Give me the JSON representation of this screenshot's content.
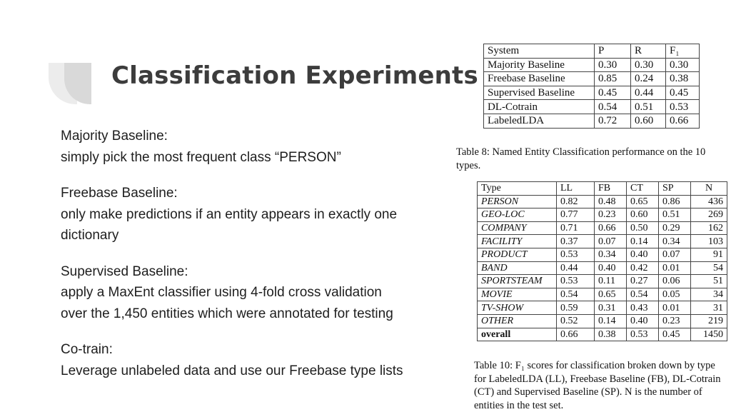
{
  "title": "Classification Experiments",
  "bullets": [
    {
      "lines": [
        "Majority Baseline:",
        "simply pick the most frequent class “PERSON”"
      ]
    },
    {
      "lines": [
        "Freebase Baseline:",
        "only make predictions if an entity appears in exactly one",
        "dictionary"
      ]
    },
    {
      "lines": [
        "Supervised Baseline:",
        "apply a MaxEnt classifier using 4-fold cross validation",
        "over the 1,450 entities which were annotated for testing"
      ]
    },
    {
      "lines": [
        "Co-train:",
        "Leverage unlabeled data and use our Freebase type lists"
      ]
    }
  ],
  "table8": {
    "rows": [
      [
        "System",
        "P",
        "R",
        "F₁"
      ],
      [
        "Majority Baseline",
        "0.30",
        "0.30",
        "0.30"
      ],
      [
        "Freebase Baseline",
        "0.85",
        "0.24",
        "0.38"
      ],
      [
        "Supervised Baseline",
        "0.45",
        "0.44",
        "0.45"
      ],
      [
        "DL-Cotrain",
        "0.54",
        "0.51",
        "0.53"
      ],
      [
        "LabeledLDA",
        "0.72",
        "0.60",
        "0.66"
      ]
    ],
    "caption": "Table 8: Named Entity Classification performance on the 10 types."
  },
  "table10": {
    "rows": [
      [
        "Type",
        "LL",
        "FB",
        "CT",
        "SP",
        "N"
      ],
      [
        "PERSON",
        "0.82",
        "0.48",
        "0.65",
        "0.86",
        "436"
      ],
      [
        "GEO-LOC",
        "0.77",
        "0.23",
        "0.60",
        "0.51",
        "269"
      ],
      [
        "COMPANY",
        "0.71",
        "0.66",
        "0.50",
        "0.29",
        "162"
      ],
      [
        "FACILITY",
        "0.37",
        "0.07",
        "0.14",
        "0.34",
        "103"
      ],
      [
        "PRODUCT",
        "0.53",
        "0.34",
        "0.40",
        "0.07",
        "91"
      ],
      [
        "BAND",
        "0.44",
        "0.40",
        "0.42",
        "0.01",
        "54"
      ],
      [
        "SPORTSTEAM",
        "0.53",
        "0.11",
        "0.27",
        "0.06",
        "51"
      ],
      [
        "MOVIE",
        "0.54",
        "0.65",
        "0.54",
        "0.05",
        "34"
      ],
      [
        "TV-SHOW",
        "0.59",
        "0.31",
        "0.43",
        "0.01",
        "31"
      ],
      [
        "OTHER",
        "0.52",
        "0.14",
        "0.40",
        "0.23",
        "219"
      ],
      [
        "overall",
        "0.66",
        "0.38",
        "0.53",
        "0.45",
        "1450"
      ]
    ],
    "caption": "Table 10: F₁ scores for classification broken down by type for LabeledLDA (LL), Freebase Baseline (FB), DL-Cotrain (CT) and Supervised Baseline (SP). N is the number of entities in the test set."
  },
  "colors": {
    "title": "#3c3c3c",
    "deco_dark": "#d9d9d9",
    "deco_light": "#ececec"
  },
  "icons": {
    "decoration": "quarter-circle-shapes"
  }
}
